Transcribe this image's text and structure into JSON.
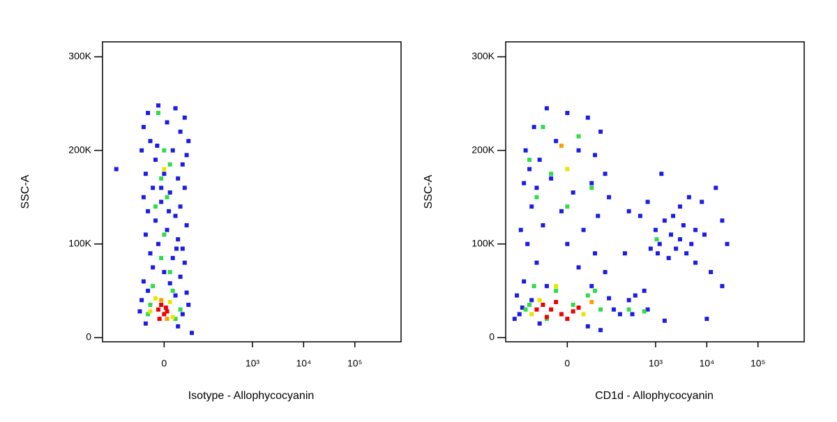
{
  "chart_data": [
    {
      "type": "scatter",
      "xlabel": "Isotype - Allophycocyanin",
      "ylabel": "SSC-A",
      "xscale": "biex",
      "xlim": [
        -300,
        800000
      ],
      "xticks": [
        0,
        {
          "value": 1000,
          "label": "10³"
        },
        {
          "value": 10000,
          "label": "10⁴"
        },
        {
          "value": 100000,
          "label": "10⁵"
        }
      ],
      "ylim": [
        -4500,
        316000
      ],
      "yticks": [
        0,
        {
          "value": 100000,
          "label": "100K"
        },
        {
          "value": 200000,
          "label": "200K"
        },
        {
          "value": 300000,
          "label": "300K"
        }
      ],
      "series": [
        {
          "color": "#1c1ce8",
          "x": [
            -30,
            -10,
            20,
            40,
            -40,
            5,
            30,
            50,
            -25,
            -45,
            15,
            45,
            -15,
            35,
            -35,
            0,
            25,
            -20,
            40,
            10,
            -40,
            -5,
            30,
            -30,
            20,
            -15,
            45,
            5,
            -35,
            25,
            -10,
            35,
            -25,
            15,
            40,
            -20,
            0,
            30,
            -40,
            10,
            -30,
            45,
            20,
            -45,
            50,
            -50,
            35,
            -35,
            25,
            60,
            -5,
            8,
            -12,
            22,
            -160
          ],
          "values": [
            240000,
            248000,
            245000,
            235000,
            225000,
            230000,
            220000,
            210000,
            210000,
            200000,
            200000,
            195000,
            190000,
            185000,
            175000,
            175000,
            170000,
            160000,
            160000,
            155000,
            150000,
            145000,
            140000,
            135000,
            130000,
            125000,
            120000,
            115000,
            110000,
            105000,
            100000,
            95000,
            90000,
            85000,
            80000,
            75000,
            70000,
            65000,
            60000,
            58000,
            50000,
            48000,
            45000,
            40000,
            35000,
            28000,
            25000,
            15000,
            12000,
            5000,
            160000,
            135000,
            205000,
            95000,
            180000
          ]
        },
        {
          "color": "#30dc48",
          "x": [
            -10,
            0,
            10,
            -5,
            5,
            -15,
            0,
            -5,
            10,
            -20,
            15,
            -25,
            30,
            -30,
            20
          ],
          "values": [
            240000,
            200000,
            185000,
            170000,
            150000,
            140000,
            110000,
            85000,
            70000,
            55000,
            50000,
            35000,
            30000,
            25000,
            20000
          ]
        },
        {
          "color": "#e6e600",
          "x": [
            -15,
            10,
            -25,
            15,
            0
          ],
          "values": [
            42000,
            38000,
            28000,
            22000,
            180000
          ]
        },
        {
          "color": "#ffa000",
          "x": [
            -5,
            5
          ],
          "values": [
            40000,
            20000
          ]
        },
        {
          "color": "#f00000",
          "x": [
            -10,
            0,
            -5,
            5,
            -8,
            3
          ],
          "values": [
            30000,
            25000,
            35000,
            28000,
            20000,
            32000
          ]
        }
      ]
    },
    {
      "type": "scatter",
      "xlabel": "CD1d - Allophycocyanin",
      "ylabel": "SSC-A",
      "xscale": "biex",
      "xlim": [
        -300,
        800000
      ],
      "xticks": [
        0,
        {
          "value": 1000,
          "label": "10³"
        },
        {
          "value": 10000,
          "label": "10⁴"
        },
        {
          "value": 100000,
          "label": "10⁵"
        }
      ],
      "ylim": [
        -4500,
        316000
      ],
      "yticks": [
        0,
        {
          "value": 100000,
          "label": "100K"
        },
        {
          "value": 200000,
          "label": "200K"
        },
        {
          "value": 300000,
          "label": "300K"
        }
      ],
      "series": [
        {
          "color": "#1c1ce8",
          "x": [
            -120,
            -80,
            -40,
            0,
            40,
            80,
            -100,
            -60,
            -20,
            20,
            60,
            100,
            -130,
            -70,
            -30,
            10,
            50,
            120,
            -90,
            -10,
            70,
            -50,
            30,
            -150,
            -110,
            0,
            60,
            -70,
            20,
            100,
            -130,
            -40,
            50,
            -180,
            -90,
            120,
            -160,
            -60,
            40,
            150,
            200,
            -200,
            80,
            -140,
            300,
            400,
            600,
            700,
            350,
            250,
            300,
            500,
            700,
            1000,
            1200,
            1500,
            2000,
            2500,
            3000,
            3500,
            4000,
            5000,
            6000,
            1100,
            1800,
            3000,
            1300,
            4500,
            8000,
            9000,
            15000,
            20000,
            25000,
            12000,
            6000,
            10000,
            20000,
            1500,
            2200,
            800
          ],
          "values": [
            200000,
            225000,
            245000,
            240000,
            235000,
            220000,
            180000,
            190000,
            210000,
            200000,
            195000,
            175000,
            165000,
            160000,
            170000,
            155000,
            165000,
            150000,
            140000,
            135000,
            130000,
            120000,
            115000,
            115000,
            100000,
            100000,
            90000,
            80000,
            75000,
            70000,
            60000,
            55000,
            55000,
            45000,
            40000,
            42000,
            25000,
            15000,
            12000,
            30000,
            25000,
            20000,
            8000,
            32000,
            40000,
            45000,
            50000,
            30000,
            25000,
            90000,
            135000,
            130000,
            145000,
            115000,
            100000,
            125000,
            110000,
            95000,
            105000,
            120000,
            90000,
            100000,
            115000,
            90000,
            85000,
            140000,
            175000,
            150000,
            145000,
            110000,
            160000,
            125000,
            100000,
            70000,
            80000,
            20000,
            55000,
            18000,
            130000,
            95000
          ]
        },
        {
          "color": "#30dc48",
          "x": [
            -50,
            -100,
            -30,
            -70,
            20,
            50,
            0,
            -80,
            -20,
            40,
            -100,
            10,
            80,
            -40,
            300,
            600,
            1050,
            -120,
            60
          ],
          "values": [
            225000,
            190000,
            175000,
            150000,
            215000,
            160000,
            140000,
            55000,
            50000,
            45000,
            35000,
            35000,
            30000,
            20000,
            30000,
            28000,
            105000,
            30000,
            50000
          ]
        },
        {
          "color": "#e6e600",
          "x": [
            -20,
            -60,
            30,
            0,
            -90
          ],
          "values": [
            55000,
            40000,
            25000,
            180000,
            25000
          ]
        },
        {
          "color": "#ffa000",
          "x": [
            -10,
            50
          ],
          "values": [
            205000,
            38000
          ]
        },
        {
          "color": "#f00000",
          "x": [
            -30,
            -10,
            -50,
            10,
            -20,
            0,
            -40,
            20,
            -70
          ],
          "values": [
            30000,
            25000,
            35000,
            28000,
            38000,
            20000,
            22000,
            32000,
            30000
          ]
        }
      ]
    }
  ]
}
